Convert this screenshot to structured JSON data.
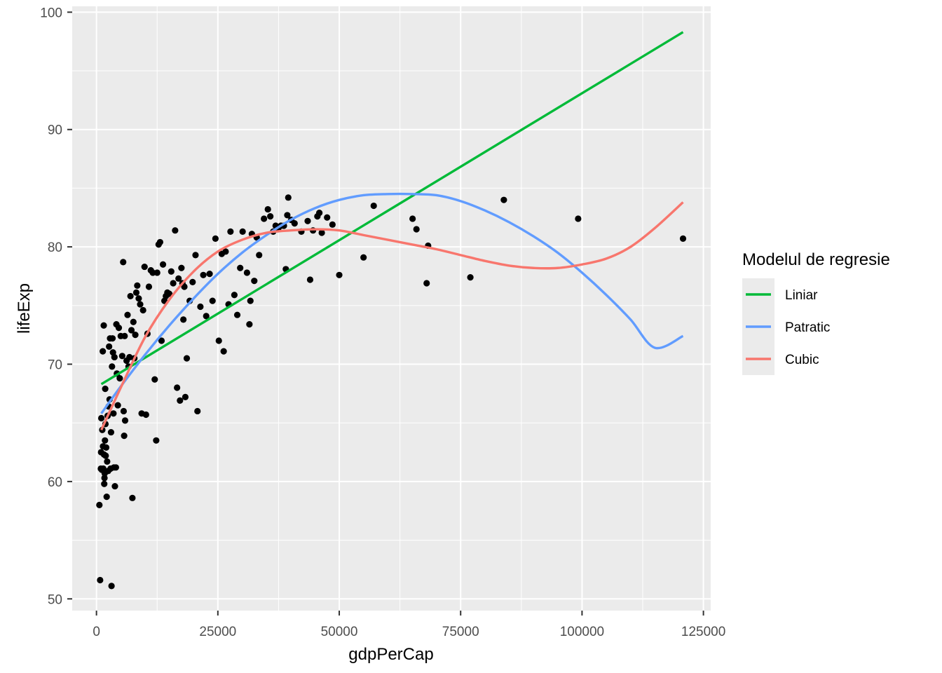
{
  "chart_data": {
    "type": "scatter",
    "xlabel": "gdpPerCap",
    "ylabel": "lifeExp",
    "xlim": [
      -5000,
      126500
    ],
    "ylim": [
      49,
      100.5
    ],
    "x_ticks": [
      0,
      25000,
      50000,
      75000,
      100000,
      125000
    ],
    "y_ticks": [
      50,
      60,
      70,
      80,
      90,
      100
    ],
    "grid": true,
    "legend": {
      "title": "Modelul de regresie",
      "position": "right"
    },
    "points": [
      [
        600,
        58.0
      ],
      [
        750,
        51.6
      ],
      [
        900,
        61.1
      ],
      [
        950,
        62.5
      ],
      [
        1000,
        65.4
      ],
      [
        1100,
        61.0
      ],
      [
        1200,
        64.4
      ],
      [
        1300,
        71.1
      ],
      [
        1350,
        63.0
      ],
      [
        1400,
        61.1
      ],
      [
        1500,
        73.3
      ],
      [
        1550,
        62.3
      ],
      [
        1600,
        59.8
      ],
      [
        1650,
        60.3
      ],
      [
        1700,
        60.7
      ],
      [
        1750,
        63.5
      ],
      [
        1800,
        67.9
      ],
      [
        1850,
        64.9
      ],
      [
        1900,
        62.2
      ],
      [
        2000,
        62.9
      ],
      [
        2100,
        58.7
      ],
      [
        2200,
        61.7
      ],
      [
        2300,
        65.6
      ],
      [
        2400,
        60.9
      ],
      [
        2500,
        66.4
      ],
      [
        2600,
        71.5
      ],
      [
        2700,
        67.0
      ],
      [
        2800,
        72.2
      ],
      [
        2900,
        61.1
      ],
      [
        3000,
        64.2
      ],
      [
        3100,
        51.1
      ],
      [
        3200,
        69.8
      ],
      [
        3300,
        72.2
      ],
      [
        3400,
        71.0
      ],
      [
        3500,
        65.8
      ],
      [
        3600,
        61.2
      ],
      [
        3700,
        70.6
      ],
      [
        3800,
        59.6
      ],
      [
        4000,
        61.2
      ],
      [
        4100,
        73.4
      ],
      [
        4200,
        69.2
      ],
      [
        4400,
        66.5
      ],
      [
        4600,
        73.1
      ],
      [
        4800,
        68.8
      ],
      [
        5000,
        72.4
      ],
      [
        5300,
        70.7
      ],
      [
        5500,
        78.7
      ],
      [
        5600,
        66.0
      ],
      [
        5700,
        63.9
      ],
      [
        5800,
        72.4
      ],
      [
        5900,
        65.2
      ],
      [
        6200,
        70.3
      ],
      [
        6400,
        74.2
      ],
      [
        6600,
        69.8
      ],
      [
        6800,
        70.6
      ],
      [
        7000,
        75.8
      ],
      [
        7200,
        72.9
      ],
      [
        7400,
        58.6
      ],
      [
        7600,
        73.6
      ],
      [
        7800,
        70.5
      ],
      [
        8000,
        72.5
      ],
      [
        8200,
        76.1
      ],
      [
        8400,
        76.7
      ],
      [
        8700,
        75.6
      ],
      [
        9000,
        75.1
      ],
      [
        9300,
        65.8
      ],
      [
        9600,
        74.6
      ],
      [
        9900,
        78.3
      ],
      [
        10200,
        65.7
      ],
      [
        10500,
        72.6
      ],
      [
        10800,
        76.6
      ],
      [
        11200,
        78.0
      ],
      [
        11600,
        77.8
      ],
      [
        12000,
        68.7
      ],
      [
        12300,
        63.5
      ],
      [
        12500,
        77.8
      ],
      [
        12800,
        80.2
      ],
      [
        13100,
        80.4
      ],
      [
        13400,
        72.0
      ],
      [
        13700,
        78.5
      ],
      [
        14000,
        75.4
      ],
      [
        14300,
        75.8
      ],
      [
        14600,
        76.1
      ],
      [
        15000,
        76.0
      ],
      [
        15400,
        77.9
      ],
      [
        15800,
        76.9
      ],
      [
        16200,
        81.4
      ],
      [
        16600,
        68.0
      ],
      [
        16900,
        77.3
      ],
      [
        17200,
        66.9
      ],
      [
        17500,
        78.2
      ],
      [
        17700,
        76.9
      ],
      [
        17900,
        73.8
      ],
      [
        18100,
        76.6
      ],
      [
        18300,
        67.2
      ],
      [
        18600,
        70.5
      ],
      [
        19200,
        75.4
      ],
      [
        19800,
        77.0
      ],
      [
        20400,
        79.3
      ],
      [
        20800,
        66.0
      ],
      [
        21400,
        74.9
      ],
      [
        22000,
        77.6
      ],
      [
        22600,
        74.1
      ],
      [
        23300,
        77.7
      ],
      [
        23900,
        75.4
      ],
      [
        24500,
        80.7
      ],
      [
        25200,
        72.0
      ],
      [
        25800,
        79.4
      ],
      [
        26200,
        71.1
      ],
      [
        26600,
        79.6
      ],
      [
        27200,
        75.1
      ],
      [
        27600,
        81.3
      ],
      [
        28400,
        75.9
      ],
      [
        29000,
        74.2
      ],
      [
        29600,
        78.2
      ],
      [
        30100,
        81.3
      ],
      [
        31000,
        77.8
      ],
      [
        31500,
        73.4
      ],
      [
        31700,
        75.4
      ],
      [
        32000,
        81.1
      ],
      [
        32500,
        77.1
      ],
      [
        33000,
        80.8
      ],
      [
        33500,
        79.3
      ],
      [
        34500,
        82.4
      ],
      [
        35300,
        83.2
      ],
      [
        35800,
        82.6
      ],
      [
        36400,
        81.3
      ],
      [
        36900,
        81.8
      ],
      [
        37400,
        81.5
      ],
      [
        38000,
        81.8
      ],
      [
        38600,
        81.8
      ],
      [
        39000,
        78.1
      ],
      [
        39300,
        82.7
      ],
      [
        39500,
        84.2
      ],
      [
        40100,
        82.3
      ],
      [
        40800,
        82.0
      ],
      [
        42200,
        81.3
      ],
      [
        43500,
        82.2
      ],
      [
        44000,
        77.2
      ],
      [
        44600,
        81.4
      ],
      [
        45500,
        82.6
      ],
      [
        45900,
        82.9
      ],
      [
        46400,
        81.2
      ],
      [
        47500,
        82.5
      ],
      [
        48600,
        81.9
      ],
      [
        50000,
        77.6
      ],
      [
        55000,
        79.1
      ],
      [
        57100,
        83.5
      ],
      [
        65100,
        82.4
      ],
      [
        65900,
        81.5
      ],
      [
        68300,
        80.1
      ],
      [
        68000,
        76.9
      ],
      [
        77000,
        77.4
      ],
      [
        83900,
        84.0
      ],
      [
        99200,
        82.4
      ],
      [
        120800,
        80.7
      ]
    ],
    "series": [
      {
        "name": "Liniar",
        "color": "#00BA38",
        "x": [
          1000,
          120800
        ],
        "y": [
          68.3,
          98.3
        ]
      },
      {
        "name": "Patratic",
        "color": "#619CFF",
        "x": [
          1000,
          5000,
          10000,
          15000,
          20000,
          25000,
          30000,
          35000,
          40000,
          45000,
          50000,
          55000,
          60000,
          65000,
          70000,
          75000,
          80000,
          85000,
          90000,
          95000,
          100000,
          105000,
          110000,
          115000,
          120800
        ],
        "y": [
          65.8,
          68.1,
          70.8,
          73.3,
          75.6,
          77.7,
          79.5,
          81.0,
          82.3,
          83.3,
          84.0,
          84.4,
          84.5,
          84.5,
          84.4,
          83.9,
          83.1,
          82.1,
          80.9,
          79.5,
          77.8,
          75.9,
          73.8,
          71.4,
          72.4
        ]
      },
      {
        "name": "Cubic",
        "color": "#F8766D",
        "x": [
          1000,
          5000,
          10000,
          15000,
          20000,
          25000,
          30000,
          35000,
          40000,
          45000,
          50000,
          55000,
          60000,
          65000,
          70000,
          75000,
          80000,
          85000,
          90000,
          95000,
          100000,
          105000,
          110000,
          115000,
          120800
        ],
        "y": [
          64.4,
          68.0,
          72.3,
          75.5,
          77.9,
          79.6,
          80.6,
          81.2,
          81.4,
          81.5,
          81.4,
          81.0,
          80.6,
          80.2,
          79.8,
          79.3,
          78.8,
          78.4,
          78.2,
          78.2,
          78.5,
          79.0,
          80.0,
          81.6,
          83.8
        ]
      }
    ]
  }
}
